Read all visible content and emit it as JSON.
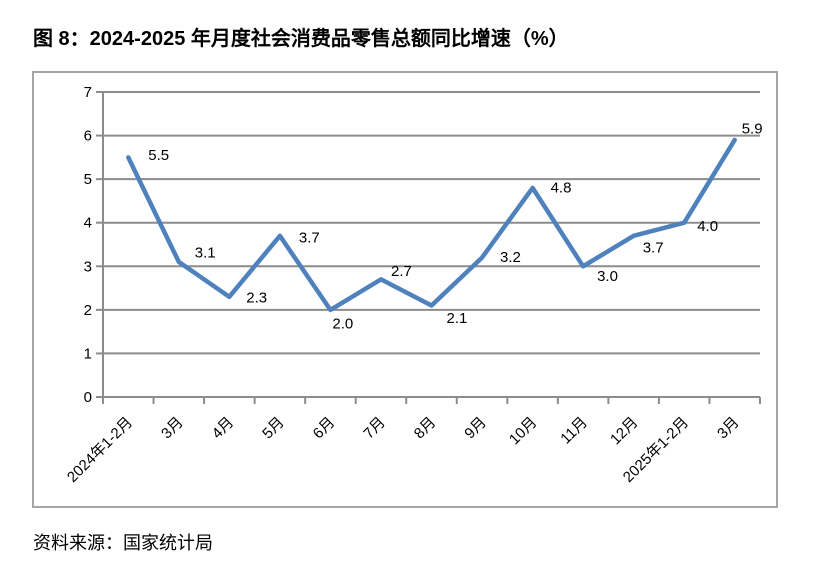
{
  "title": "图 8：2024-2025 年月度社会消费品零售总额同比增速（%）",
  "source": "资料来源：国家统计局",
  "chart_data": {
    "type": "line",
    "title": "2024-2025 年月度社会消费品零售总额同比增速（%）",
    "categories": [
      "2024年1-2月",
      "3月",
      "4月",
      "5月",
      "6月",
      "7月",
      "8月",
      "9月",
      "10月",
      "11月",
      "12月",
      "2025年1-2月",
      "3月"
    ],
    "series": [
      {
        "name": "社会消费品零售总额同比增速",
        "values": [
          5.5,
          3.1,
          2.3,
          3.7,
          2.0,
          2.7,
          2.1,
          3.2,
          4.8,
          3.0,
          3.7,
          4.0,
          5.9
        ]
      }
    ],
    "data_labels": [
      "5.5",
      "3.1",
      "2.3",
      "3.7",
      "2.0",
      "2.7",
      "2.1",
      "3.2",
      "4.8",
      "3.0",
      "3.7",
      "4.0",
      "5.9"
    ],
    "xlabel": "",
    "ylabel": "",
    "ylim": [
      0,
      7
    ],
    "ytick_step": 1,
    "yticks": [
      0,
      1,
      2,
      3,
      4,
      5,
      6,
      7
    ],
    "grid": true,
    "legend_position": "none",
    "colors": {
      "line": "#4F81BD",
      "gridline": "#8C8C8C",
      "axis": "#8C8C8C",
      "label_text": "#000000",
      "frame_border": "#A6A6A6"
    }
  }
}
